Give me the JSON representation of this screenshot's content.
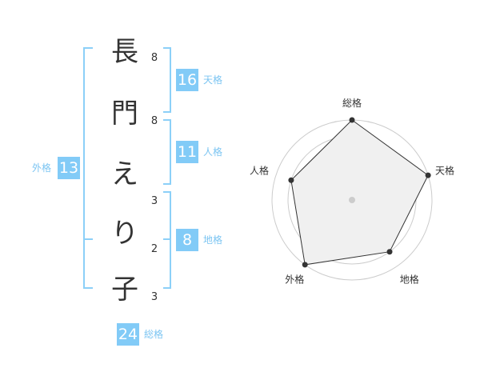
{
  "name": {
    "chars": [
      "長",
      "門",
      "え",
      "り",
      "子"
    ],
    "strokes": [
      "8",
      "8",
      "3",
      "2",
      "3"
    ]
  },
  "kaku": {
    "tenkaku": {
      "label": "天格",
      "value": "16"
    },
    "jinkaku": {
      "label": "人格",
      "value": "11"
    },
    "chikaku": {
      "label": "地格",
      "value": "8"
    },
    "gaikaku": {
      "label": "外格",
      "value": "13"
    },
    "soukaku": {
      "label": "総格",
      "value": "24"
    }
  },
  "chart_data": {
    "type": "radar",
    "axes": [
      "総格",
      "天格",
      "地格",
      "外格",
      "人格"
    ],
    "values": [
      5,
      5,
      4,
      5,
      4
    ],
    "range": [
      0,
      5
    ],
    "rings": 5,
    "colors": {
      "fill": "#f0f0f0",
      "line": "#333333",
      "ring": "#cccccc",
      "accent": "#82cbf7"
    }
  }
}
